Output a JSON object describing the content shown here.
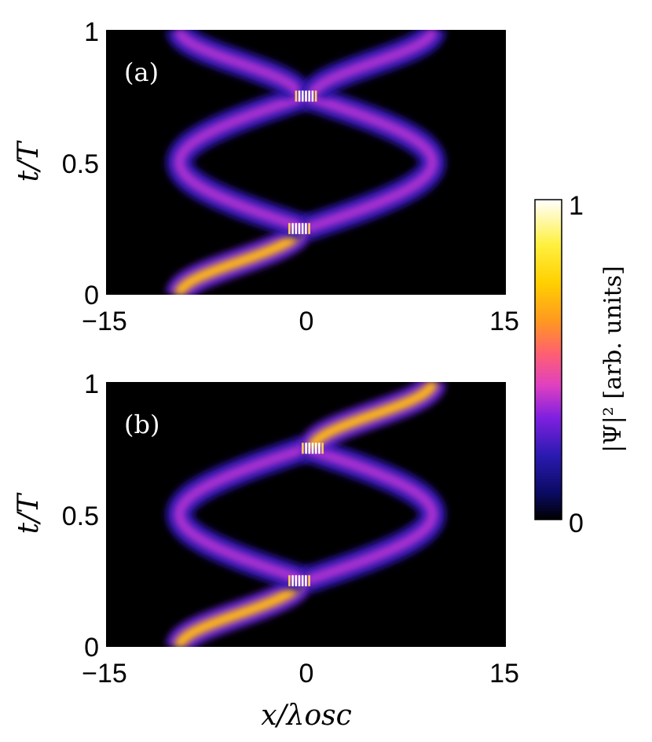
{
  "chart_data": [
    {
      "type": "heatmap",
      "panel_label": "(a)",
      "xlabel": "",
      "ylabel": "t/T",
      "xlim": [
        -15,
        15
      ],
      "ylim": [
        0,
        1
      ],
      "x_ticks": [
        "−15",
        "0",
        "15"
      ],
      "y_ticks": [
        "0",
        "0.5",
        "1"
      ],
      "colorscale": "black-blue-purple-orange-yellow-white",
      "packets": [
        {
          "t_start": 0.0,
          "t_end": 0.25,
          "x_start": -9.5,
          "x_end": -0.5,
          "peak": 0.75
        },
        {
          "t_start": 0.25,
          "t_end": 0.75,
          "x_amplitude": 9.5,
          "direction": "left",
          "peak": 0.45
        },
        {
          "t_start": 0.25,
          "t_end": 0.75,
          "x_amplitude": 9.5,
          "direction": "right",
          "peak": 0.45
        },
        {
          "t_start": 0.75,
          "t_end": 1.0,
          "x_start": -0.5,
          "x_end": -9.5,
          "peak": 0.45
        },
        {
          "t_start": 0.75,
          "t_end": 1.0,
          "x_start": 0.5,
          "x_end": 9.5,
          "peak": 0.45
        }
      ],
      "interference_fringes": [
        {
          "t": 0.25,
          "x_center": -0.5
        },
        {
          "t": 0.75,
          "x_center": 0.0
        }
      ]
    },
    {
      "type": "heatmap",
      "panel_label": "(b)",
      "xlabel": "x/λosc",
      "ylabel": "t/T",
      "xlim": [
        -15,
        15
      ],
      "ylim": [
        0,
        1
      ],
      "x_ticks": [
        "−15",
        "0",
        "15"
      ],
      "y_ticks": [
        "0",
        "0.5",
        "1"
      ],
      "colorscale": "black-blue-purple-orange-yellow-white",
      "packets": [
        {
          "t_start": 0.0,
          "t_end": 0.25,
          "x_start": -9.5,
          "x_end": -0.5,
          "peak": 0.75
        },
        {
          "t_start": 0.25,
          "t_end": 0.75,
          "x_amplitude": 9.5,
          "direction": "left",
          "peak": 0.45
        },
        {
          "t_start": 0.25,
          "t_end": 0.75,
          "x_amplitude": 9.5,
          "direction": "right",
          "peak": 0.45
        },
        {
          "t_start": 0.75,
          "t_end": 1.0,
          "x_start": 0.5,
          "x_end": 9.5,
          "peak": 0.75
        }
      ],
      "interference_fringes": [
        {
          "t": 0.25,
          "x_center": -0.5
        },
        {
          "t": 0.75,
          "x_center": 0.5
        }
      ]
    }
  ],
  "colorbar": {
    "label": "|Ψ|² [arb. units]",
    "min_label": "0",
    "max_label": "1"
  }
}
